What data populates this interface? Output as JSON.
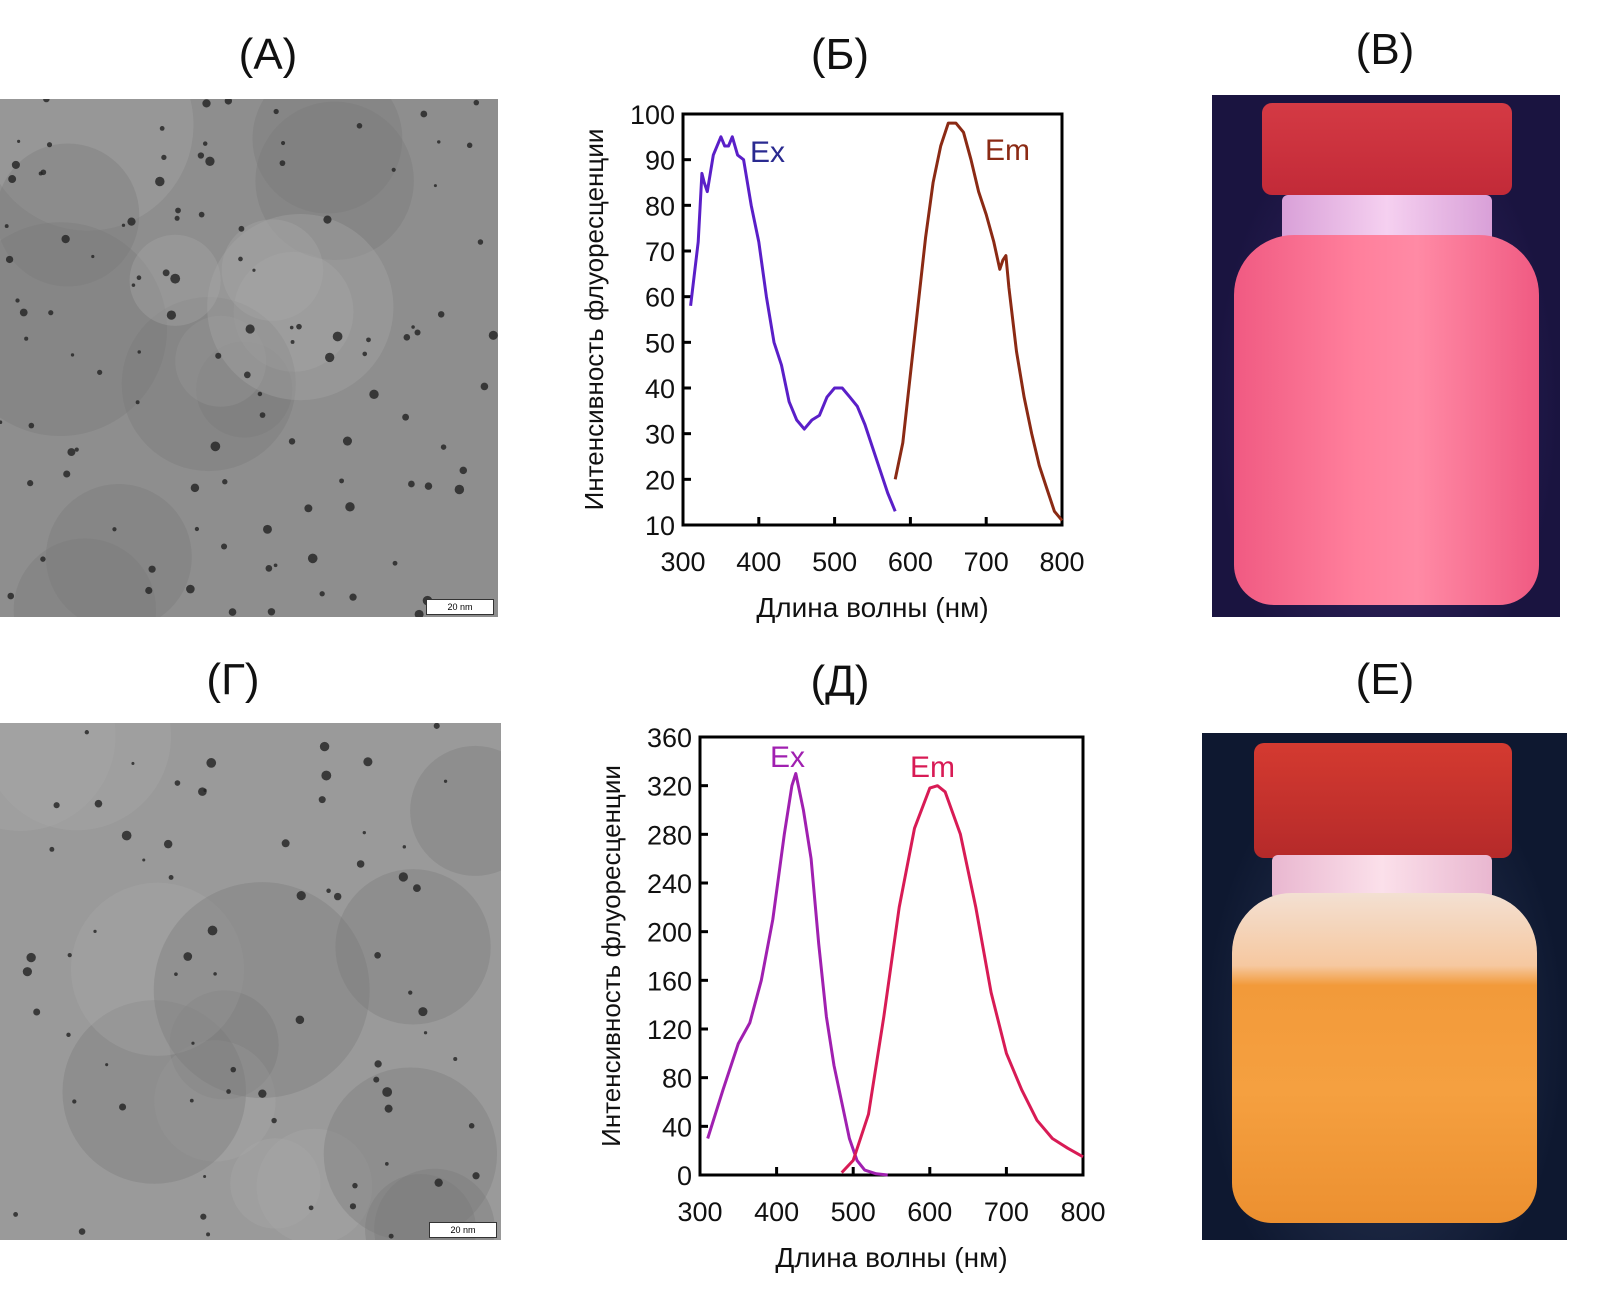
{
  "panels": {
    "a": {
      "label": "(А)",
      "scale_bar": "20 nm"
    },
    "b": {
      "label": "(Б)"
    },
    "v": {
      "label": "(В)"
    },
    "g": {
      "label": "(Г)",
      "scale_bar": "20 nm"
    },
    "d": {
      "label": "(Д)"
    },
    "e": {
      "label": "(Е)"
    }
  },
  "colors": {
    "b_ex": "#5a1fc8",
    "b_em": "#8b2a14",
    "d_ex": "#a020b0",
    "d_em": "#d81b55",
    "b_ex_label": "#2a2a90",
    "b_em_label": "#8b2a14"
  },
  "chart_data": [
    {
      "type": "line",
      "panel": "Б",
      "xlabel": "Длина волны (нм)",
      "ylabel": "Интенсивность флуоресценции",
      "xlim": [
        300,
        800
      ],
      "ylim": [
        10,
        100
      ],
      "xticks": [
        300,
        400,
        500,
        600,
        700,
        800
      ],
      "yticks": [
        10,
        20,
        30,
        40,
        50,
        60,
        70,
        80,
        90,
        100
      ],
      "grid": false,
      "series": [
        {
          "name": "Ex",
          "x": [
            310,
            320,
            325,
            328,
            332,
            340,
            350,
            355,
            360,
            365,
            372,
            380,
            390,
            400,
            410,
            420,
            430,
            440,
            450,
            460,
            470,
            480,
            490,
            500,
            510,
            520,
            530,
            540,
            550,
            560,
            570,
            580
          ],
          "y": [
            58,
            72,
            87,
            85,
            83,
            91,
            95,
            93,
            93,
            95,
            91,
            90,
            80,
            72,
            60,
            50,
            45,
            37,
            33,
            31,
            33,
            34,
            38,
            40,
            40,
            38,
            36,
            32,
            27,
            22,
            17,
            13
          ]
        },
        {
          "name": "Em",
          "x": [
            580,
            590,
            600,
            610,
            620,
            630,
            640,
            650,
            660,
            670,
            680,
            690,
            700,
            710,
            718,
            722,
            726,
            730,
            740,
            750,
            760,
            770,
            780,
            790,
            800
          ],
          "y": [
            20,
            28,
            43,
            58,
            73,
            85,
            93,
            98,
            98,
            96,
            90,
            83,
            78,
            72,
            66,
            68,
            69,
            62,
            48,
            38,
            30,
            23,
            18,
            13,
            11
          ]
        }
      ]
    },
    {
      "type": "line",
      "panel": "Д",
      "xlabel": "Длина волны (нм)",
      "ylabel": "Интенсивность флуоресценции",
      "xlim": [
        300,
        800
      ],
      "ylim": [
        0,
        360
      ],
      "xticks": [
        300,
        400,
        500,
        600,
        700,
        800
      ],
      "yticks": [
        0,
        40,
        80,
        120,
        160,
        200,
        240,
        280,
        320,
        360
      ],
      "grid": false,
      "series": [
        {
          "name": "Ex",
          "x": [
            310,
            330,
            350,
            365,
            380,
            395,
            410,
            420,
            425,
            435,
            445,
            455,
            465,
            475,
            485,
            495,
            505,
            515,
            530,
            545
          ],
          "y": [
            30,
            70,
            108,
            125,
            160,
            210,
            280,
            320,
            330,
            300,
            260,
            190,
            130,
            90,
            60,
            30,
            12,
            4,
            1,
            0
          ]
        },
        {
          "name": "Em",
          "x": [
            485,
            500,
            520,
            540,
            560,
            580,
            600,
            610,
            620,
            640,
            660,
            680,
            700,
            720,
            740,
            760,
            780,
            800
          ],
          "y": [
            2,
            12,
            50,
            130,
            220,
            285,
            318,
            320,
            315,
            280,
            220,
            150,
            100,
            70,
            45,
            30,
            22,
            15
          ]
        }
      ]
    }
  ]
}
